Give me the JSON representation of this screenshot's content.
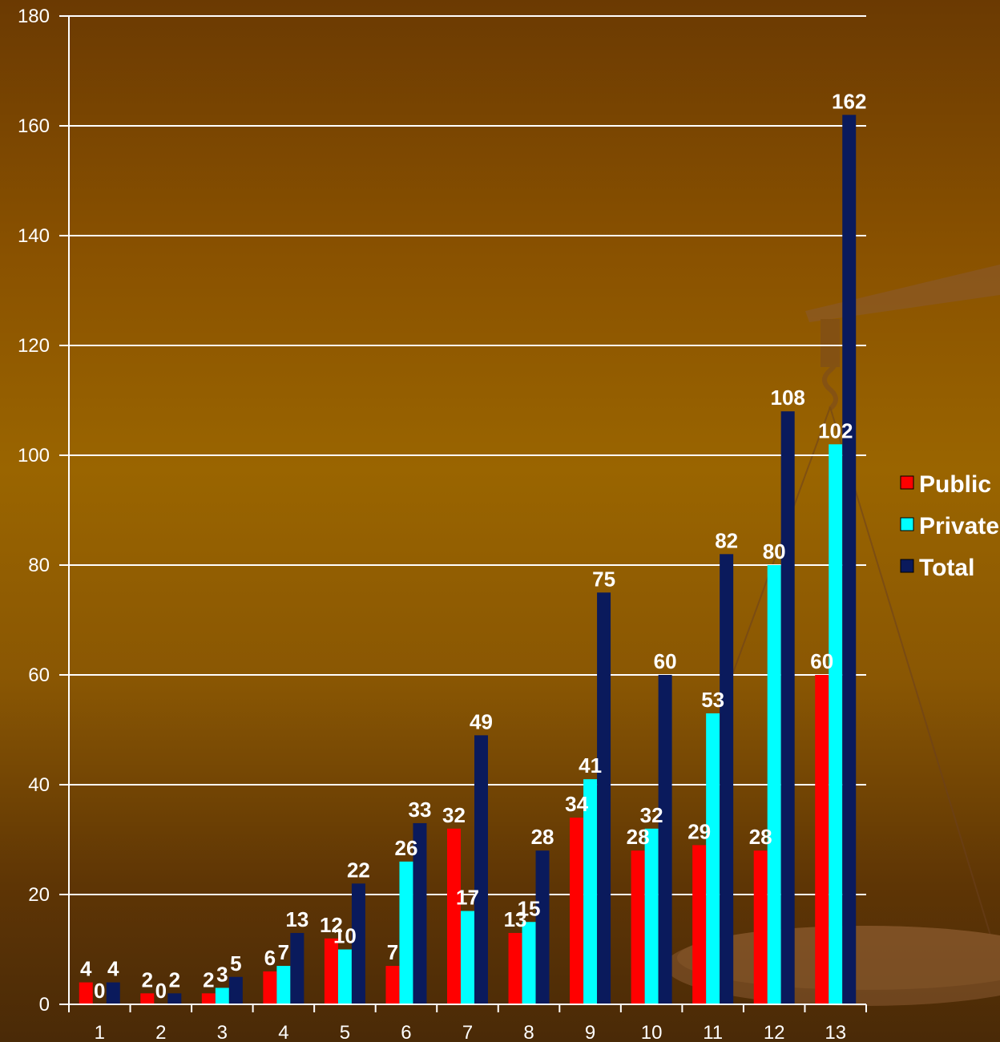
{
  "chart_data": {
    "type": "bar",
    "title": "",
    "xlabel": "",
    "ylabel": "",
    "categories": [
      "1",
      "2",
      "3",
      "4",
      "5",
      "6",
      "7",
      "8",
      "9",
      "10",
      "11",
      "12",
      "13"
    ],
    "series": [
      {
        "name": "Public",
        "color": "#ff0000",
        "values": [
          4,
          2,
          2,
          6,
          12,
          7,
          32,
          13,
          34,
          28,
          29,
          28,
          60
        ]
      },
      {
        "name": "Private",
        "color": "#00ffff",
        "values": [
          0,
          0,
          3,
          7,
          10,
          26,
          17,
          15,
          41,
          32,
          53,
          80,
          102
        ]
      },
      {
        "name": "Total",
        "color": "#0a1a5c",
        "values": [
          4,
          2,
          5,
          13,
          22,
          33,
          49,
          28,
          75,
          60,
          82,
          108,
          162
        ]
      }
    ],
    "ylim": [
      0,
      180
    ],
    "yticks": [
      0,
      20,
      40,
      60,
      80,
      100,
      120,
      140,
      160,
      180
    ],
    "grid": true,
    "legend": "right"
  }
}
